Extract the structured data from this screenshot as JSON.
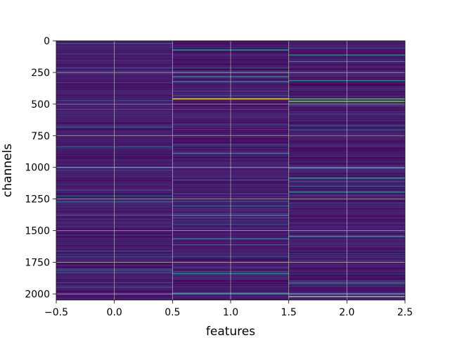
{
  "chart_data": {
    "type": "heatmap",
    "title": "",
    "xlabel": "features",
    "ylabel": "channels",
    "xlim": [
      -0.5,
      2.5
    ],
    "ylim": [
      2048,
      0
    ],
    "y_inverted": true,
    "x_ticks": [
      -0.5,
      0.0,
      0.5,
      1.0,
      1.5,
      2.0,
      2.5
    ],
    "x_tick_labels": [
      "−0.5",
      "0.0",
      "0.5",
      "1.0",
      "1.5",
      "2.0",
      "2.5"
    ],
    "y_ticks": [
      0,
      250,
      500,
      750,
      1000,
      1250,
      1500,
      1750,
      2000
    ],
    "y_tick_labels": [
      "0",
      "250",
      "500",
      "750",
      "1000",
      "1250",
      "1500",
      "1750",
      "2000"
    ],
    "grid": true,
    "colormap": "viridis",
    "colorbar": false,
    "columns": [
      0,
      1,
      2
    ],
    "rows": 2048,
    "background_level": 0.08,
    "highlight_rows": [
      {
        "column": 1,
        "channel": 68,
        "value": 0.55
      },
      {
        "column": 1,
        "channel": 280,
        "value": 0.5
      },
      {
        "column": 1,
        "channel": 318,
        "value": 0.45
      },
      {
        "column": 1,
        "channel": 455,
        "value": 0.98
      },
      {
        "column": 1,
        "channel": 885,
        "value": 0.5
      },
      {
        "column": 1,
        "channel": 1375,
        "value": 0.5
      },
      {
        "column": 1,
        "channel": 1560,
        "value": 0.45
      },
      {
        "column": 1,
        "channel": 1835,
        "value": 0.5
      },
      {
        "column": 1,
        "channel": 1990,
        "value": 0.45
      },
      {
        "column": 2,
        "channel": 108,
        "value": 0.55
      },
      {
        "column": 2,
        "channel": 160,
        "value": 0.45
      },
      {
        "column": 2,
        "channel": 310,
        "value": 0.5
      },
      {
        "column": 2,
        "channel": 455,
        "value": 0.75
      },
      {
        "column": 2,
        "channel": 475,
        "value": 0.8
      },
      {
        "column": 2,
        "channel": 1080,
        "value": 0.5
      },
      {
        "column": 2,
        "channel": 1190,
        "value": 0.45
      },
      {
        "column": 2,
        "channel": 1540,
        "value": 0.5
      },
      {
        "column": 2,
        "channel": 1910,
        "value": 0.5
      },
      {
        "column": 2,
        "channel": 2018,
        "value": 0.85
      }
    ]
  }
}
